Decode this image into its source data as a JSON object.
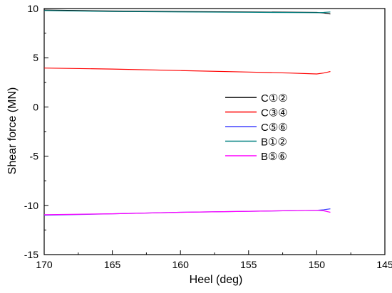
{
  "chart_data": {
    "type": "line",
    "title": "",
    "xlabel": "Heel (deg)",
    "ylabel": "Shear force (MN)",
    "xlim": [
      170,
      145
    ],
    "ylim": [
      -15,
      10
    ],
    "x_reversed": true,
    "xticks": [
      170,
      165,
      160,
      155,
      150,
      145
    ],
    "yticks": [
      -15,
      -10,
      -5,
      0,
      5,
      10
    ],
    "grid": false,
    "legend_position": "center-right",
    "series": [
      {
        "name": "C①②",
        "color": "#000000",
        "x": [
          170,
          165,
          160,
          155,
          150,
          149.5,
          149
        ],
        "y": [
          9.85,
          9.75,
          9.7,
          9.65,
          9.6,
          9.55,
          9.45
        ]
      },
      {
        "name": "C③④",
        "color": "#ff0000",
        "x": [
          170,
          165,
          160,
          155,
          152,
          150,
          149.5,
          149
        ],
        "y": [
          3.95,
          3.85,
          3.7,
          3.55,
          3.45,
          3.35,
          3.45,
          3.6
        ]
      },
      {
        "name": "C⑤⑥",
        "color": "#4444ff",
        "x": [
          170,
          165,
          160,
          155,
          150,
          149.5,
          149
        ],
        "y": [
          -11.0,
          -10.85,
          -10.7,
          -10.6,
          -10.5,
          -10.45,
          -10.35
        ]
      },
      {
        "name": "B①②",
        "color": "#008080",
        "x": [
          170,
          165,
          160,
          155,
          150,
          149.5,
          149
        ],
        "y": [
          9.8,
          9.7,
          9.65,
          9.62,
          9.58,
          9.6,
          9.65
        ]
      },
      {
        "name": "B⑤⑥",
        "color": "#ff00ff",
        "x": [
          170,
          165,
          160,
          155,
          150,
          149.5,
          149
        ],
        "y": [
          -10.95,
          -10.85,
          -10.7,
          -10.6,
          -10.5,
          -10.55,
          -10.7
        ]
      }
    ]
  }
}
